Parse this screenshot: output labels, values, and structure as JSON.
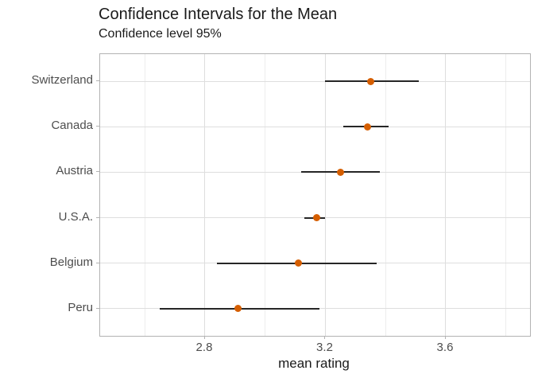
{
  "title": "Confidence Intervals for the Mean",
  "subtitle": "Confidence level 95%",
  "chart_data": {
    "type": "scatter",
    "subtype": "dot-with-error-bars",
    "orientation": "horizontal",
    "title": "Confidence Intervals for the Mean",
    "subtitle": "Confidence level 95%",
    "xlabel": "mean rating",
    "ylabel": "",
    "categories": [
      "Switzerland",
      "Canada",
      "Austria",
      "U.S.A.",
      "Belgium",
      "Peru"
    ],
    "points": [
      {
        "label": "Switzerland",
        "mean": 3.35,
        "lower": 3.2,
        "upper": 3.51
      },
      {
        "label": "Canada",
        "mean": 3.34,
        "lower": 3.26,
        "upper": 3.41
      },
      {
        "label": "Austria",
        "mean": 3.25,
        "lower": 3.12,
        "upper": 3.38
      },
      {
        "label": "U.S.A.",
        "mean": 3.17,
        "lower": 3.13,
        "upper": 3.2
      },
      {
        "label": "Belgium",
        "mean": 3.11,
        "lower": 2.84,
        "upper": 3.37
      },
      {
        "label": "Peru",
        "mean": 2.91,
        "lower": 2.65,
        "upper": 3.18
      }
    ],
    "x_ticks": [
      2.8,
      3.2,
      3.6
    ],
    "x_tick_labels": [
      "2.8",
      "3.2",
      "3.6"
    ],
    "x_minor_ticks": [
      2.6,
      3.0,
      3.4,
      3.8
    ],
    "xlim": [
      2.4515,
      3.8799
    ],
    "grid": true,
    "legend": "none",
    "colors": {
      "point": "#D55E00",
      "bar": "#262626",
      "grid_major": "#dedede",
      "grid_minor": "#ededed",
      "panel_border": "#b3b3b3",
      "tick": "#b3b3b3",
      "axis_text": "#4d4d4d",
      "title_text": "#1a1a1a"
    }
  }
}
